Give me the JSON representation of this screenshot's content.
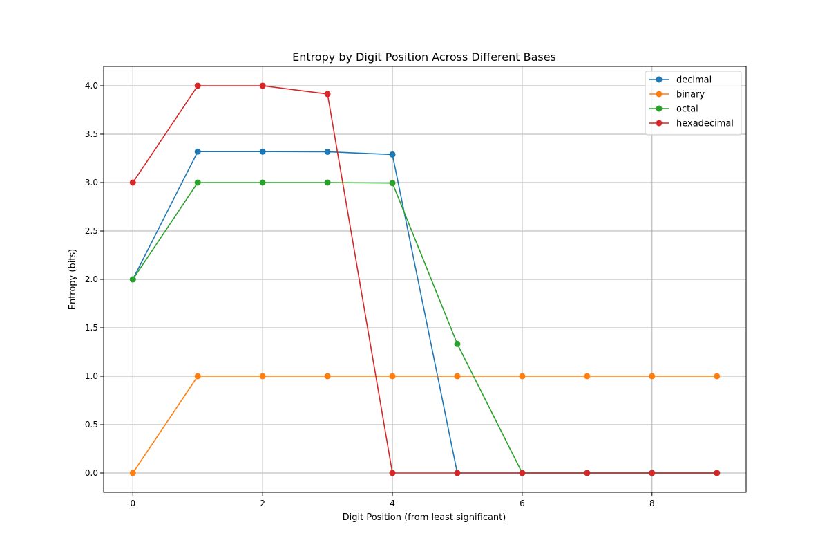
{
  "chart_data": {
    "type": "line",
    "title": "Entropy by Digit Position Across Different Bases",
    "xlabel": "Digit Position (from least significant)",
    "ylabel": "Entropy (bits)",
    "x": [
      0,
      1,
      2,
      3,
      4,
      5,
      6,
      7,
      8,
      9
    ],
    "xlim": [
      -0.45,
      9.45
    ],
    "ylim": [
      -0.2,
      4.2
    ],
    "xticks": [
      0,
      2,
      4,
      6,
      8
    ],
    "yticks": [
      0.0,
      0.5,
      1.0,
      1.5,
      2.0,
      2.5,
      3.0,
      3.5,
      4.0
    ],
    "ytick_labels": [
      "0.0",
      "0.5",
      "1.0",
      "1.5",
      "2.0",
      "2.5",
      "3.0",
      "3.5",
      "4.0"
    ],
    "grid": true,
    "legend_position": "top-right",
    "series": [
      {
        "name": "decimal",
        "color": "#1f77b4",
        "values": [
          2.0,
          3.32,
          3.32,
          3.318,
          3.29,
          0.0,
          0.0,
          0.0,
          0.0,
          0.0
        ]
      },
      {
        "name": "binary",
        "color": "#ff7f0e",
        "values": [
          0.0,
          1.0,
          1.0,
          1.0,
          1.0,
          1.0,
          1.0,
          1.0,
          1.0,
          1.0
        ]
      },
      {
        "name": "octal",
        "color": "#2ca02c",
        "values": [
          2.0,
          3.0,
          3.0,
          3.0,
          2.995,
          1.333,
          0.0,
          0.0,
          0.0,
          0.0
        ]
      },
      {
        "name": "hexadecimal",
        "color": "#d62728",
        "values": [
          3.0,
          4.0,
          4.0,
          3.915,
          0.0,
          0.0,
          0.0,
          0.0,
          0.0,
          0.0
        ]
      }
    ]
  }
}
